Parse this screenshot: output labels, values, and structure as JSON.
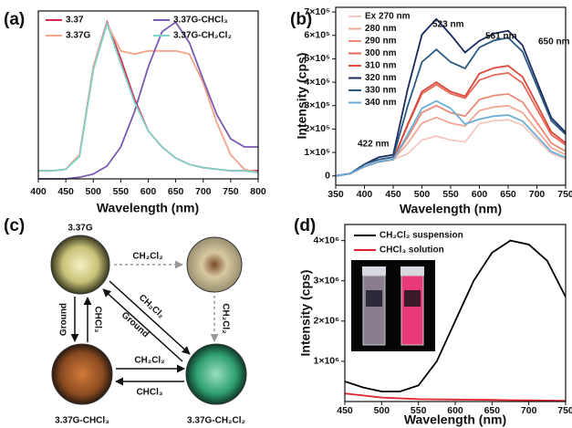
{
  "chart_data": [
    {
      "panel_label": "(a)",
      "type": "line",
      "x": [
        400,
        425,
        450,
        475,
        500,
        525,
        550,
        575,
        600,
        625,
        650,
        675,
        700,
        725,
        750,
        775,
        800
      ],
      "xlim": [
        400,
        800
      ],
      "xticks": [
        400,
        450,
        500,
        550,
        600,
        650,
        700,
        750,
        800
      ],
      "xlabel": "Wavelength (nm)",
      "ylim": [
        0,
        1.05
      ],
      "series": [
        {
          "name": "3.37",
          "color": "#d6284f",
          "values": [
            0.05,
            0.05,
            0.06,
            0.15,
            0.7,
            0.98,
            0.75,
            0.5,
            0.3,
            0.2,
            0.13,
            0.09,
            0.07,
            0.06,
            0.05,
            0.05,
            0.05
          ]
        },
        {
          "name": "3.37G",
          "color": "#f4a48a",
          "values": [
            0.05,
            0.05,
            0.06,
            0.15,
            0.7,
            0.97,
            0.8,
            0.78,
            0.8,
            0.8,
            0.8,
            0.78,
            0.6,
            0.35,
            0.15,
            0.06,
            0.04
          ]
        },
        {
          "name": "3.37G-CHCl₃",
          "color": "#7b5ab0",
          "values": [
            0,
            0,
            0,
            0.01,
            0.03,
            0.08,
            0.2,
            0.42,
            0.7,
            0.92,
            0.98,
            0.85,
            0.62,
            0.4,
            0.25,
            0.2,
            0.2
          ]
        },
        {
          "name": "3.37G-CH₂Cl₂",
          "color": "#7fd3c8",
          "values": [
            0.05,
            0.05,
            0.06,
            0.14,
            0.68,
            0.97,
            0.72,
            0.48,
            0.3,
            0.2,
            0.13,
            0.09,
            0.07,
            0.06,
            0.05,
            0.05,
            0.04
          ]
        }
      ]
    },
    {
      "panel_label": "(b)",
      "type": "line",
      "x": [
        350,
        375,
        400,
        425,
        450,
        475,
        500,
        525,
        550,
        575,
        600,
        625,
        650,
        675,
        700,
        725,
        750
      ],
      "xlim": [
        350,
        750
      ],
      "xticks": [
        350,
        400,
        450,
        500,
        550,
        600,
        650,
        700,
        750
      ],
      "xlabel": "Wavelength (nm)",
      "ylabel": "Intensity (cps)",
      "ylim": [
        -40000,
        720000
      ],
      "yticks": [
        0,
        {
          "value": 100000,
          "label": "1×10⁵"
        },
        {
          "value": 200000,
          "label": "2×10⁵"
        },
        {
          "value": 300000,
          "label": "3×10⁵"
        },
        {
          "value": 400000,
          "label": "4×10⁵"
        },
        {
          "value": 500000,
          "label": "5×10⁵"
        },
        {
          "value": 600000,
          "label": "6×10⁵"
        },
        {
          "value": 700000,
          "label": "7×10⁵"
        }
      ],
      "annotations": [
        "422 nm",
        "523 nm",
        "561 nm",
        "650 nm"
      ],
      "series": [
        {
          "name": "Ex 270 nm",
          "color": "#f6c8c0",
          "values": [
            0,
            10000,
            40000,
            60000,
            70000,
            94000,
            153000,
            170000,
            153000,
            145000,
            223000,
            235000,
            240000,
            216000,
            156000,
            96000,
            72000
          ]
        },
        {
          "name": "280 nm",
          "color": "#f2a898",
          "values": [
            0,
            10000,
            40000,
            60000,
            70000,
            138000,
            225000,
            250000,
            225000,
            213000,
            279000,
            294000,
            300000,
            270000,
            195000,
            120000,
            90000
          ]
        },
        {
          "name": "290 nm",
          "color": "#ee8a78",
          "values": [
            0,
            10000,
            40000,
            60000,
            70000,
            165000,
            270000,
            300000,
            270000,
            255000,
            326000,
            343000,
            350000,
            315000,
            228000,
            140000,
            105000
          ]
        },
        {
          "name": "300 nm",
          "color": "#e8685a",
          "values": [
            0,
            10000,
            40000,
            60000,
            70000,
            215000,
            351000,
            390000,
            351000,
            332000,
            409000,
            431000,
            440000,
            396000,
            286000,
            176000,
            132000
          ]
        },
        {
          "name": "310 nm",
          "color": "#d94a3c",
          "values": [
            0,
            10000,
            40000,
            60000,
            70000,
            220000,
            360000,
            400000,
            360000,
            340000,
            437000,
            461000,
            470000,
            423000,
            306000,
            188000,
            141000
          ]
        },
        {
          "name": "320 nm",
          "color": "#1a2a5e",
          "values": [
            0,
            10000,
            50000,
            80000,
            90000,
            369000,
            603000,
            670000,
            603000,
            527000,
            577000,
            608000,
            620000,
            558000,
            403000,
            248000,
            186000
          ]
        },
        {
          "name": "330 nm",
          "color": "#2a5a80",
          "values": [
            0,
            10000,
            50000,
            70000,
            80000,
            297000,
            486000,
            540000,
            486000,
            459000,
            549000,
            578000,
            590000,
            531000,
            384000,
            236000,
            177000
          ]
        },
        {
          "name": "340 nm",
          "color": "#6aaed6",
          "values": [
            0,
            10000,
            40000,
            60000,
            70000,
            176000,
            288000,
            320000,
            288000,
            221000,
            242000,
            255000,
            260000,
            234000,
            169000,
            104000,
            78000
          ]
        }
      ]
    },
    {
      "panel_label": "(d)",
      "type": "line",
      "x": [
        450,
        475,
        500,
        525,
        550,
        575,
        600,
        625,
        650,
        675,
        700,
        725,
        750
      ],
      "xlim": [
        450,
        750
      ],
      "xticks": [
        450,
        500,
        550,
        600,
        650,
        700,
        750
      ],
      "xlabel": "Wavelength (nm)",
      "ylabel": "Intensity (cps)",
      "ylim": [
        0,
        4400000
      ],
      "yticks": [
        {
          "value": 1000000,
          "label": "1×10⁶"
        },
        {
          "value": 2000000,
          "label": "2×10⁶"
        },
        {
          "value": 3000000,
          "label": "3×10⁶"
        },
        {
          "value": 4000000,
          "label": "4×10⁶"
        }
      ],
      "series": [
        {
          "name": "CH₂Cl₂ suspension",
          "color": "#000000",
          "values": [
            500000,
            350000,
            250000,
            250000,
            400000,
            1000000,
            2000000,
            3000000,
            3700000,
            4000000,
            3900000,
            3500000,
            2600000
          ]
        },
        {
          "name": "CHCl₃ solution",
          "color": "#e0202a",
          "values": [
            200000,
            150000,
            100000,
            80000,
            60000,
            55000,
            50000,
            45000,
            40000,
            35000,
            30000,
            25000,
            20000
          ]
        }
      ]
    }
  ],
  "scheme": {
    "panel_label": "(c)",
    "samples": [
      "3.37G",
      "3.37G-CHCl₃",
      "3.37G-CH₂Cl₂"
    ],
    "arrows": [
      "CH₂Cl₂",
      "CH₂Cl₂",
      "CH₂Cl₂",
      "Ground",
      "Ground",
      "CHCl₃",
      "CH₂Cl₂",
      "CHCl₃"
    ]
  }
}
